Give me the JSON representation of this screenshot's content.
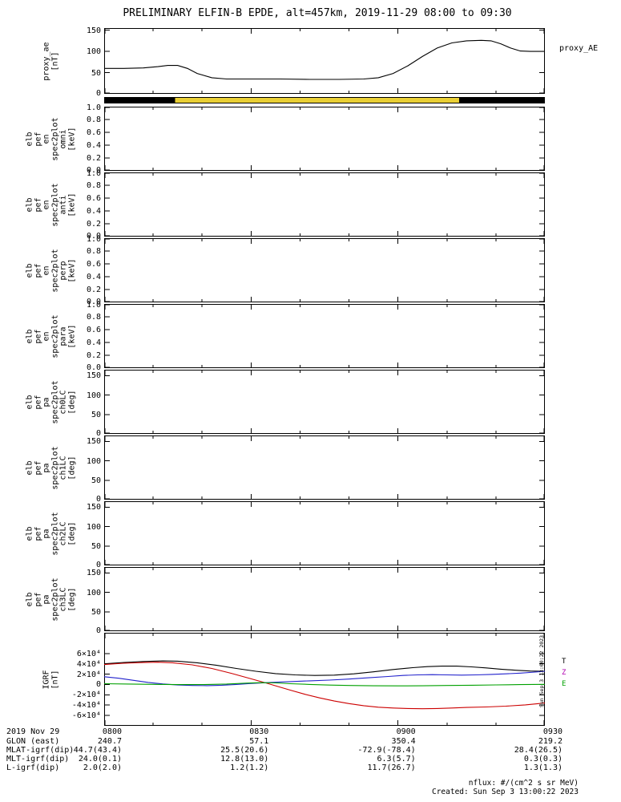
{
  "title": "PRELIMINARY ELFIN-B EPDE, alt=457km, 2019-11-29 08:00 to 09:30",
  "right_label": "proxy_AE",
  "footer": {
    "nflux": "nflux: #/(cm^2 s sr MeV)",
    "created": "Created: Sun Sep  3 13:00:22 2023",
    "created_vertical": "Sun Sep  3 13:00:22 2023"
  },
  "bottom_rows": [
    {
      "label": "2019 Nov 29",
      "values": [
        "0800",
        "0830",
        "0900",
        "0930"
      ]
    },
    {
      "label": "GLON (east)",
      "values": [
        "240.7",
        "57.1",
        "350.4",
        "219.2"
      ]
    },
    {
      "label": "MLAT-igrf(dip)",
      "values": [
        "44.7(43.4)",
        "25.5(20.6)",
        "-72.9(-78.4)",
        "28.4(26.5)"
      ]
    },
    {
      "label": "MLT-igrf(dip)",
      "values": [
        "24.0(0.1)",
        "12.8(13.0)",
        "6.3(5.7)",
        "0.3(0.3)"
      ]
    },
    {
      "label": "L-igrf(dip)",
      "values": [
        "2.0(2.0)",
        "1.2(1.2)",
        "11.7(26.7)",
        "1.3(1.3)"
      ]
    }
  ],
  "chart_data": {
    "type": "line",
    "layout": "multi-panel-timeseries",
    "time_range": [
      "08:00",
      "09:30"
    ],
    "x_axis": {
      "tick_labels": [
        "0800",
        "0830",
        "0900",
        "0930"
      ],
      "tick_minutes": [
        0,
        30,
        60,
        90
      ],
      "minor_minutes": [
        10,
        20,
        40,
        50,
        70,
        80
      ]
    },
    "panels": [
      {
        "id": "proxy_ae",
        "type": "line",
        "ylabel_lines": [
          "proxy_ae",
          "[nT]"
        ],
        "ylim": [
          0,
          155
        ],
        "yticks": [
          0,
          50,
          100,
          150
        ],
        "ytick_labels": [
          "0",
          "50",
          "100",
          "150"
        ],
        "series": [
          {
            "name": "proxy_AE",
            "color": "#000000",
            "points": [
              [
                0,
                60
              ],
              [
                4,
                60
              ],
              [
                8,
                61
              ],
              [
                11,
                64
              ],
              [
                13,
                67
              ],
              [
                15,
                67
              ],
              [
                17,
                60
              ],
              [
                19,
                48
              ],
              [
                22,
                38
              ],
              [
                25,
                35
              ],
              [
                30,
                35
              ],
              [
                36,
                35
              ],
              [
                42,
                34
              ],
              [
                48,
                34
              ],
              [
                53,
                35
              ],
              [
                56,
                38
              ],
              [
                59,
                48
              ],
              [
                62,
                66
              ],
              [
                65,
                88
              ],
              [
                68,
                108
              ],
              [
                71,
                120
              ],
              [
                74,
                125
              ],
              [
                77,
                126
              ],
              [
                79,
                125
              ],
              [
                81,
                118
              ],
              [
                83,
                108
              ],
              [
                85,
                101
              ],
              [
                87,
                100
              ],
              [
                90,
                100
              ]
            ]
          }
        ]
      },
      {
        "id": "status_bar",
        "type": "bar-segments",
        "segments": [
          {
            "start": 0,
            "end": 14.5,
            "color": "#000000"
          },
          {
            "start": 14.5,
            "end": 72.5,
            "color": "#e9cf35"
          },
          {
            "start": 72.5,
            "end": 90,
            "color": "#000000"
          }
        ]
      },
      {
        "id": "omni",
        "type": "empty",
        "ylabel_lines": [
          "elb",
          "pef",
          "en",
          "spec2plot",
          "omni",
          "[keV]"
        ],
        "ylim": [
          0,
          1
        ],
        "yticks": [
          0,
          0.2,
          0.4,
          0.6,
          0.8,
          1.0
        ],
        "ytick_labels": [
          "0.0",
          "0.2",
          "0.4",
          "0.6",
          "0.8",
          "1.0"
        ]
      },
      {
        "id": "anti",
        "type": "empty",
        "ylabel_lines": [
          "elb",
          "pef",
          "en",
          "spec2plot",
          "anti",
          "[keV]"
        ],
        "ylim": [
          0,
          1
        ],
        "yticks": [
          0,
          0.2,
          0.4,
          0.6,
          0.8,
          1.0
        ],
        "ytick_labels": [
          "0.0",
          "0.2",
          "0.4",
          "0.6",
          "0.8",
          "1.0"
        ]
      },
      {
        "id": "perp",
        "type": "empty",
        "ylabel_lines": [
          "elb",
          "pef",
          "en",
          "spec2plot",
          "perp",
          "[keV]"
        ],
        "ylim": [
          0,
          1
        ],
        "yticks": [
          0,
          0.2,
          0.4,
          0.6,
          0.8,
          1.0
        ],
        "ytick_labels": [
          "0.0",
          "0.2",
          "0.4",
          "0.6",
          "0.8",
          "1.0"
        ]
      },
      {
        "id": "para",
        "type": "empty",
        "ylabel_lines": [
          "elb",
          "pef",
          "en",
          "spec2plot",
          "para",
          "[keV]"
        ],
        "ylim": [
          0,
          1
        ],
        "yticks": [
          0,
          0.2,
          0.4,
          0.6,
          0.8,
          1.0
        ],
        "ytick_labels": [
          "0.0",
          "0.2",
          "0.4",
          "0.6",
          "0.8",
          "1.0"
        ]
      },
      {
        "id": "ch0LC",
        "type": "empty",
        "ylabel_lines": [
          "elb",
          "pef",
          "pa",
          "spec2plot",
          "ch0LC",
          "[deg]"
        ],
        "ylim": [
          0,
          165
        ],
        "yticks": [
          0,
          50,
          100,
          150
        ],
        "ytick_labels": [
          "0",
          "50",
          "100",
          "150"
        ]
      },
      {
        "id": "ch1LC",
        "type": "empty",
        "ylabel_lines": [
          "elb",
          "pef",
          "pa",
          "spec2plot",
          "ch1LC",
          "[deg]"
        ],
        "ylim": [
          0,
          165
        ],
        "yticks": [
          0,
          50,
          100,
          150
        ],
        "ytick_labels": [
          "0",
          "50",
          "100",
          "150"
        ]
      },
      {
        "id": "ch2LC",
        "type": "empty",
        "ylabel_lines": [
          "elb",
          "pef",
          "pa",
          "spec2plot",
          "ch2LC",
          "[deg]"
        ],
        "ylim": [
          0,
          165
        ],
        "yticks": [
          0,
          50,
          100,
          150
        ],
        "ytick_labels": [
          "0",
          "50",
          "100",
          "150"
        ]
      },
      {
        "id": "ch3LC",
        "type": "empty",
        "ylabel_lines": [
          "elb",
          "pef",
          "pa",
          "spec2plot",
          "ch3LC",
          "[deg]"
        ],
        "ylim": [
          0,
          165
        ],
        "yticks": [
          0,
          50,
          100,
          150
        ],
        "ytick_labels": [
          "0",
          "50",
          "100",
          "150"
        ]
      },
      {
        "id": "igrf",
        "type": "line",
        "ylabel_lines": [
          "IGRF",
          "[nT]"
        ],
        "ylim": [
          -80000,
          100000
        ],
        "yticks": [
          -60000,
          -40000,
          -20000,
          0,
          20000,
          40000,
          60000
        ],
        "ytick_labels": [
          "-6×10⁴",
          "-4×10⁴",
          "-2×10⁴",
          "0",
          "2×10⁴",
          "4×10⁴",
          "6×10⁴"
        ],
        "legend": [
          {
            "label": "T",
            "color": "#000000"
          },
          {
            "label": "Z",
            "color": "#b000b0"
          },
          {
            "label": "E",
            "color": "#00a000"
          }
        ],
        "series": [
          {
            "name": "black",
            "color": "#000000",
            "points": [
              [
                0,
                40000
              ],
              [
                4,
                42500
              ],
              [
                8,
                44500
              ],
              [
                12,
                45500
              ],
              [
                15,
                45000
              ],
              [
                19,
                42000
              ],
              [
                23,
                37000
              ],
              [
                27,
                31000
              ],
              [
                31,
                25500
              ],
              [
                35,
                21000
              ],
              [
                39,
                18500
              ],
              [
                43,
                17500
              ],
              [
                47,
                18000
              ],
              [
                51,
                20500
              ],
              [
                55,
                24500
              ],
              [
                59,
                29000
              ],
              [
                63,
                32500
              ],
              [
                66,
                34500
              ],
              [
                69,
                35500
              ],
              [
                72,
                35500
              ],
              [
                75,
                34000
              ],
              [
                78,
                32000
              ],
              [
                81,
                29500
              ],
              [
                84,
                27500
              ],
              [
                87,
                26000
              ],
              [
                90,
                25500
              ]
            ]
          },
          {
            "name": "red",
            "color": "#cc0000",
            "points": [
              [
                0,
                38500
              ],
              [
                4,
                41000
              ],
              [
                8,
                42500
              ],
              [
                11,
                43000
              ],
              [
                14,
                42000
              ],
              [
                18,
                38000
              ],
              [
                22,
                31000
              ],
              [
                26,
                21500
              ],
              [
                30,
                11000
              ],
              [
                33,
                3000
              ],
              [
                35,
                -2500
              ],
              [
                38,
                -11000
              ],
              [
                41,
                -19000
              ],
              [
                44,
                -26000
              ],
              [
                47,
                -32000
              ],
              [
                50,
                -37000
              ],
              [
                53,
                -41000
              ],
              [
                56,
                -44000
              ],
              [
                59,
                -45500
              ],
              [
                62,
                -46500
              ],
              [
                65,
                -47000
              ],
              [
                68,
                -46500
              ],
              [
                71,
                -45500
              ],
              [
                74,
                -44500
              ],
              [
                78,
                -43500
              ],
              [
                82,
                -42000
              ],
              [
                86,
                -39500
              ],
              [
                90,
                -36000
              ]
            ]
          },
          {
            "name": "blue",
            "color": "#2222cc",
            "points": [
              [
                0,
                15000
              ],
              [
                3,
                12000
              ],
              [
                6,
                8000
              ],
              [
                9,
                4000
              ],
              [
                12,
                1000
              ],
              [
                15,
                -1000
              ],
              [
                18,
                -2000
              ],
              [
                21,
                -2200
              ],
              [
                24,
                -1500
              ],
              [
                27,
                0
              ],
              [
                30,
                2000
              ],
              [
                34,
                4000
              ],
              [
                38,
                5500
              ],
              [
                42,
                7000
              ],
              [
                46,
                8500
              ],
              [
                50,
                10500
              ],
              [
                54,
                13000
              ],
              [
                58,
                15500
              ],
              [
                61,
                17500
              ],
              [
                64,
                18500
              ],
              [
                67,
                19000
              ],
              [
                70,
                18500
              ],
              [
                73,
                18000
              ],
              [
                76,
                18500
              ],
              [
                79,
                19500
              ],
              [
                82,
                20500
              ],
              [
                85,
                22000
              ],
              [
                88,
                24000
              ],
              [
                90,
                25500
              ]
            ]
          },
          {
            "name": "green",
            "color": "#00a000",
            "points": [
              [
                0,
                1500
              ],
              [
                5,
                800
              ],
              [
                10,
                200
              ],
              [
                15,
                -300
              ],
              [
                20,
                -300
              ],
              [
                25,
                800
              ],
              [
                29,
                2500
              ],
              [
                32,
                3500
              ],
              [
                35,
                3000
              ],
              [
                38,
                1500
              ],
              [
                42,
                0
              ],
              [
                46,
                -1200
              ],
              [
                50,
                -2000
              ],
              [
                55,
                -2500
              ],
              [
                60,
                -2800
              ],
              [
                65,
                -2500
              ],
              [
                70,
                -2000
              ],
              [
                75,
                -1500
              ],
              [
                80,
                -800
              ],
              [
                85,
                -200
              ],
              [
                90,
                300
              ]
            ]
          }
        ]
      }
    ]
  }
}
